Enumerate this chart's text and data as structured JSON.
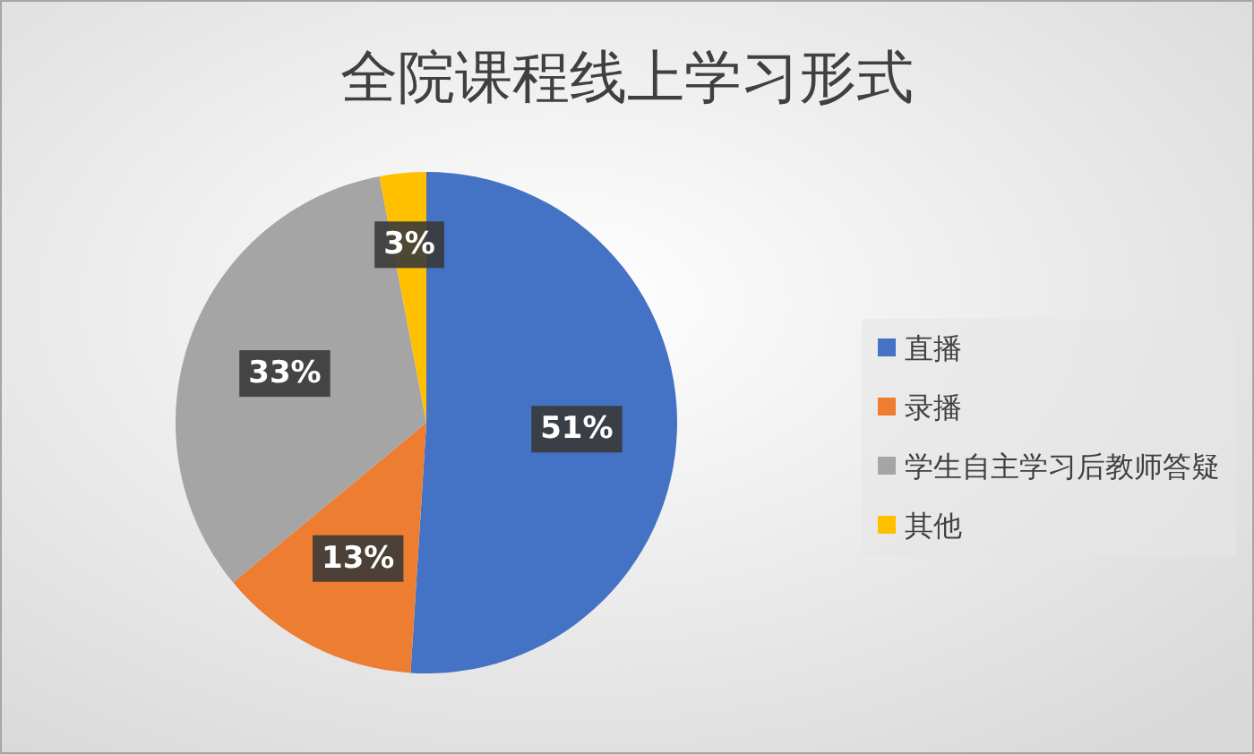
{
  "chart_data": {
    "type": "pie",
    "title": "全院课程线上学习形式",
    "categories": [
      "直播",
      "录播",
      "学生自主学习后教师答疑",
      "其他"
    ],
    "values": [
      51,
      13,
      33,
      3
    ],
    "colors": [
      "#4472c4",
      "#ed7d31",
      "#a5a5a5",
      "#ffc000"
    ],
    "value_labels": [
      "51%",
      "13%",
      "33%",
      "3%"
    ],
    "legend": "right"
  }
}
